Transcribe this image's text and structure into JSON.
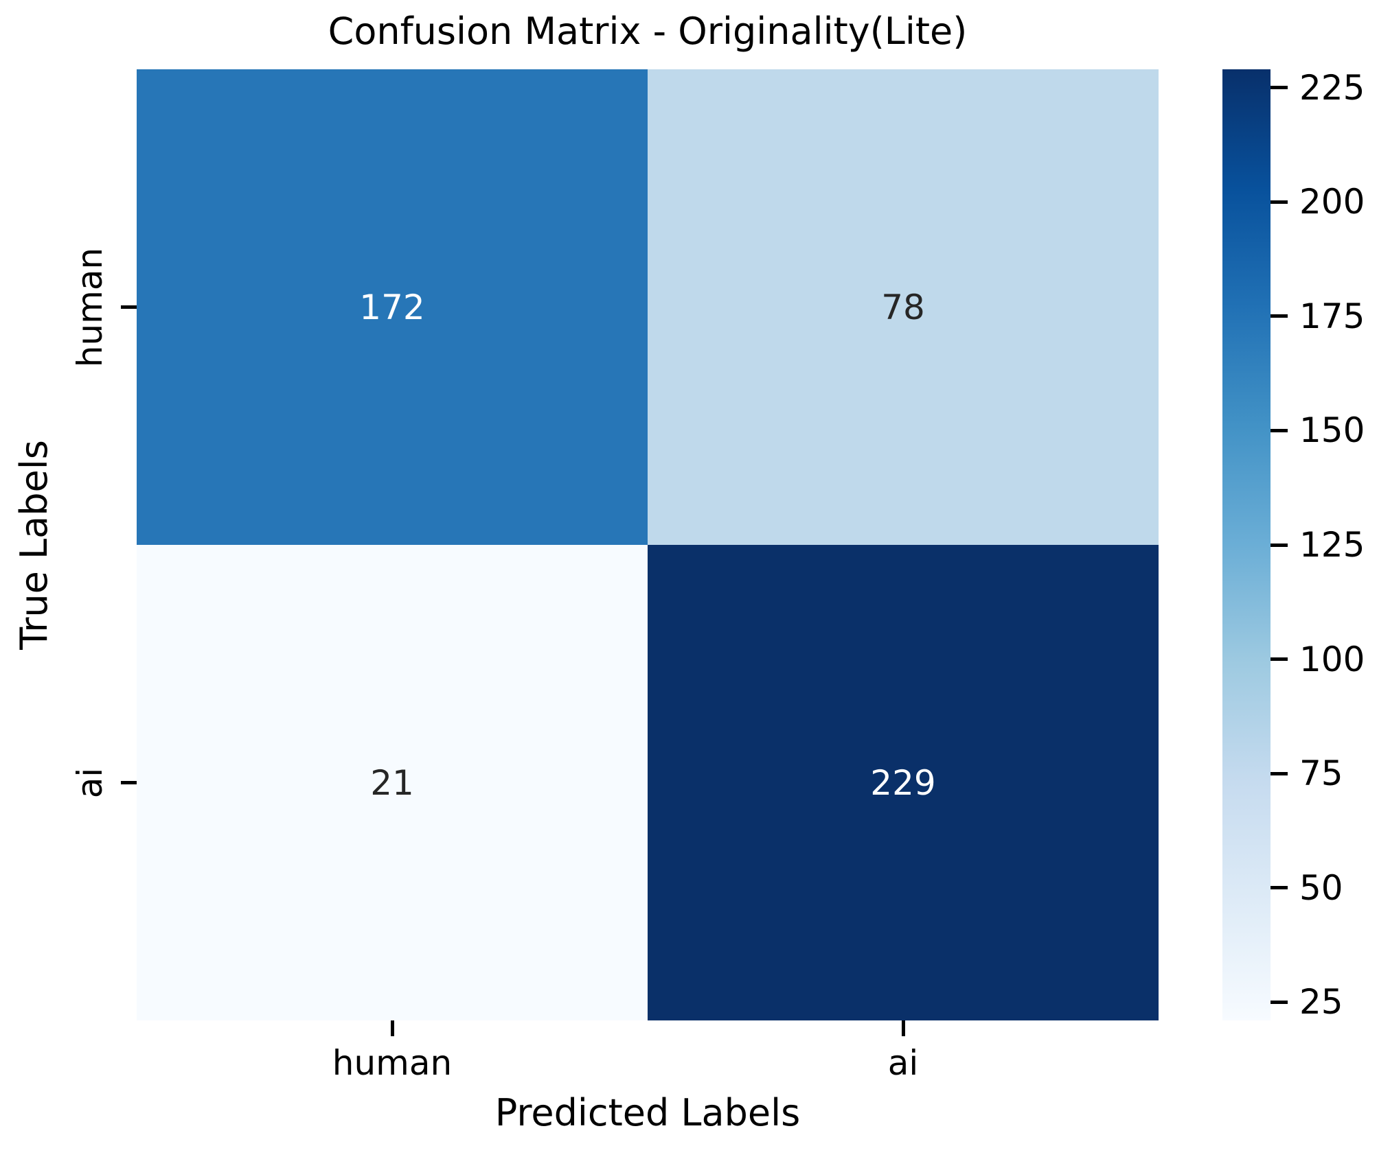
{
  "chart_data": {
    "type": "heatmap",
    "title": "Confusion Matrix - Originality(Lite)",
    "xlabel": "Predicted Labels",
    "ylabel": "True Labels",
    "x_categories": [
      "human",
      "ai"
    ],
    "y_categories": [
      "human",
      "ai"
    ],
    "matrix": [
      [
        172,
        78
      ],
      [
        21,
        229
      ]
    ],
    "vmin": 21,
    "vmax": 229,
    "colormap": "Blues",
    "grid": false,
    "legend_position": "right-colorbar",
    "colorbar_ticks": [
      25,
      50,
      75,
      100,
      125,
      150,
      175,
      200,
      225
    ],
    "cell_colors": [
      [
        "#2776b7",
        "#bfd9eb"
      ],
      [
        "#f7fbff",
        "#0a3069"
      ]
    ],
    "cell_text_colors": [
      [
        "#ffffff",
        "#262626"
      ],
      [
        "#262626",
        "#ffffff"
      ]
    ],
    "colorbar_gradient": [
      "#f7fbff",
      "#deebf7",
      "#c6dbef",
      "#9ecae1",
      "#6baed6",
      "#4292c6",
      "#2171b5",
      "#08519c",
      "#08306b"
    ],
    "axis_text_color": "#000000",
    "background_color": "#ffffff"
  }
}
